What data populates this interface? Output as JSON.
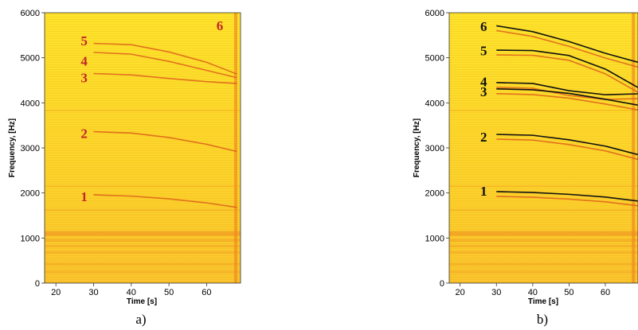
{
  "colors": {
    "background_low": "#ffee1c",
    "background_high": "#f8c030",
    "band": "#ee8a20",
    "harmonic_trace": "#d8501a",
    "fit_line": "#111111",
    "annotation_a": "#c0282a",
    "annotation_b": "#111111"
  },
  "chart_data": [
    {
      "type": "heatmap",
      "caption": "a)",
      "title": "",
      "xlabel": "Time [s]",
      "ylabel": "Frequency, [Hz]",
      "xlim": [
        17,
        69
      ],
      "ylim": [
        0,
        6000
      ],
      "xticks": [
        "20",
        "30",
        "40",
        "50",
        "60"
      ],
      "yticks": [
        "0",
        "1000",
        "2000",
        "3000",
        "4000",
        "5000",
        "6000"
      ],
      "grid": false,
      "legend": "none",
      "harmonic_traces": [
        {
          "label": "1",
          "x": [
            30,
            40,
            50,
            60,
            68
          ],
          "y": [
            1960,
            1930,
            1870,
            1780,
            1680
          ]
        },
        {
          "label": "2",
          "x": [
            30,
            40,
            50,
            60,
            68
          ],
          "y": [
            3360,
            3330,
            3230,
            3080,
            2920
          ]
        },
        {
          "label": "3",
          "x": [
            30,
            40,
            50,
            60,
            68
          ],
          "y": [
            4650,
            4620,
            4540,
            4470,
            4430
          ]
        },
        {
          "label": "4",
          "x": [
            30,
            40,
            50,
            60,
            68
          ],
          "y": [
            5120,
            5080,
            4920,
            4720,
            4560
          ]
        },
        {
          "label": "5",
          "x": [
            30,
            40,
            50,
            60,
            68
          ],
          "y": [
            5320,
            5290,
            5130,
            4900,
            4640
          ]
        }
      ],
      "annotations": [
        {
          "text": "1",
          "x": 27.5,
          "y": 1920
        },
        {
          "text": "2",
          "x": 27.5,
          "y": 3330
        },
        {
          "text": "3",
          "x": 27.5,
          "y": 4560
        },
        {
          "text": "4",
          "x": 27.5,
          "y": 4930
        },
        {
          "text": "5",
          "x": 27.5,
          "y": 5380
        },
        {
          "text": "6",
          "x": 63.5,
          "y": 5720
        }
      ]
    },
    {
      "type": "heatmap",
      "caption": "b)",
      "title": "",
      "xlabel": "Time [s]",
      "ylabel": "Frequency, [Hz]",
      "xlim": [
        17,
        69
      ],
      "ylim": [
        0,
        6000
      ],
      "xticks": [
        "20",
        "30",
        "40",
        "50",
        "60"
      ],
      "yticks": [
        "0",
        "1000",
        "2000",
        "3000",
        "4000",
        "5000",
        "6000"
      ],
      "grid": false,
      "legend": "none",
      "series": [
        {
          "name": "1",
          "x": [
            30,
            40,
            50,
            60,
            69
          ],
          "y": [
            2030,
            2010,
            1970,
            1910,
            1820
          ]
        },
        {
          "name": "2",
          "x": [
            30,
            40,
            50,
            60,
            69
          ],
          "y": [
            3300,
            3280,
            3180,
            3040,
            2850
          ]
        },
        {
          "name": "3",
          "x": [
            30,
            40,
            50,
            60,
            69
          ],
          "y": [
            4310,
            4290,
            4210,
            4080,
            3950
          ]
        },
        {
          "name": "4",
          "x": [
            30,
            40,
            50,
            60,
            69
          ],
          "y": [
            4450,
            4430,
            4270,
            4180,
            4200
          ]
        },
        {
          "name": "5",
          "x": [
            30,
            40,
            50,
            60,
            69
          ],
          "y": [
            5170,
            5160,
            5050,
            4750,
            4340
          ]
        },
        {
          "name": "6",
          "x": [
            30,
            40,
            50,
            60,
            69
          ],
          "y": [
            5710,
            5580,
            5360,
            5100,
            4900
          ]
        }
      ],
      "annotations": [
        {
          "text": "1",
          "x": 26.5,
          "y": 2050
        },
        {
          "text": "2",
          "x": 26.5,
          "y": 3250
        },
        {
          "text": "3",
          "x": 26.5,
          "y": 4250
        },
        {
          "text": "4",
          "x": 26.5,
          "y": 4470
        },
        {
          "text": "5",
          "x": 26.5,
          "y": 5160
        },
        {
          "text": "6",
          "x": 26.5,
          "y": 5700
        }
      ]
    }
  ]
}
